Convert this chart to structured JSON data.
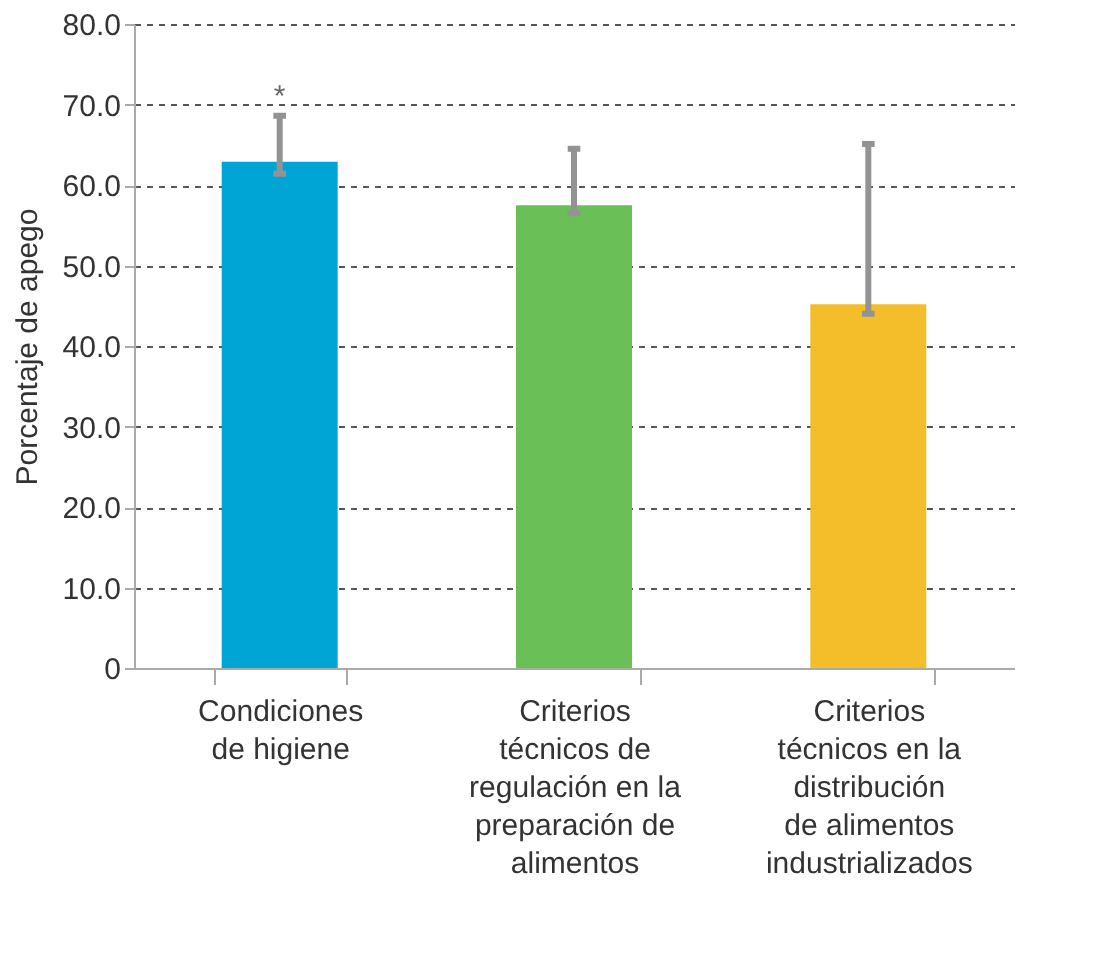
{
  "chart_data": {
    "type": "bar",
    "ylabel": "Porcentaje de apego",
    "categories": [
      "Condiciones de higiene",
      "Criterios técnicos de regulación en la preparación de alimentos",
      "Criterios técnicos en la distribución de alimentos industrializados"
    ],
    "values": [
      62.9,
      57.5,
      45.2
    ],
    "colors": [
      "#00a5d5",
      "#6abf57",
      "#f4be2a"
    ],
    "errors": [
      [
        61.4,
        68.6
      ],
      [
        56.5,
        64.5
      ],
      [
        44.0,
        65.1
      ]
    ],
    "ylim": [
      0,
      80
    ],
    "yticks": [
      0,
      {
        "value": 10,
        "label": "10.0"
      },
      {
        "value": 20,
        "label": "20.0"
      },
      {
        "value": 30,
        "label": "30.0"
      },
      {
        "value": 40,
        "label": "40.0"
      },
      {
        "value": 50,
        "label": "50.0"
      },
      {
        "value": 60,
        "label": "60.0"
      },
      {
        "value": 70,
        "label": "70.0"
      },
      {
        "value": 80,
        "label": "80.0"
      }
    ],
    "grid": "y",
    "annotations": [
      "*"
    ]
  }
}
